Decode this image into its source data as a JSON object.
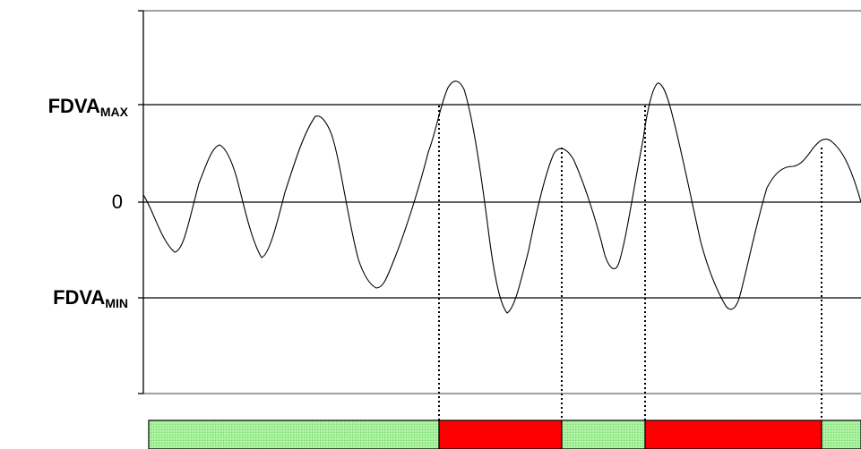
{
  "labels": {
    "max": {
      "main": "FDVA",
      "sub": "MAX"
    },
    "zero": "0",
    "min": {
      "main": "FDVA",
      "sub": "MIN"
    }
  },
  "colors": {
    "normal_segment": "#90ee90",
    "alarm_segment": "#ff0000",
    "line": "#000000"
  },
  "bar_segments": [
    {
      "state": "normal",
      "name": "segment-normal-1"
    },
    {
      "state": "alarm",
      "name": "segment-alarm-1"
    },
    {
      "state": "normal",
      "name": "segment-normal-2"
    },
    {
      "state": "alarm",
      "name": "segment-alarm-2"
    },
    {
      "state": "normal",
      "name": "segment-normal-3"
    }
  ]
}
